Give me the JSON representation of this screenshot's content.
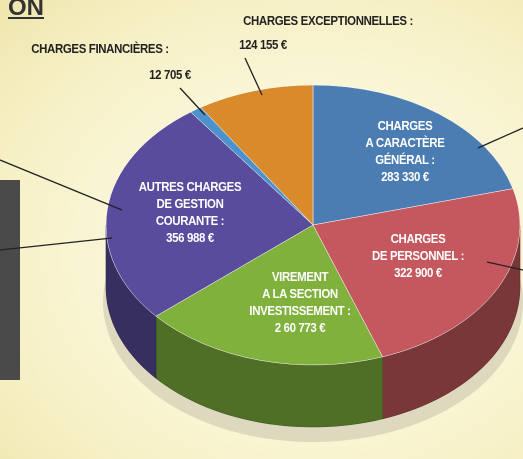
{
  "chart_data": {
    "type": "pie3d",
    "title": "ON",
    "categories": [
      "CHARGES\nA CARACTÈRE\nGÉNÉRAL :",
      "CHARGES\nDE PERSONNEL :",
      "VIREMENT\nA LA SECTION\nINVESTISSEMENT :",
      "AUTRES CHARGES\nDE GESTION\nCOURANTE :",
      "CHARGES FINANCIÈRES :",
      "CHARGES EXCEPTIONNELLES :"
    ],
    "values": [
      283330,
      322900,
      260773,
      356988,
      12705,
      124155
    ],
    "value_labels": [
      "283 330 €",
      "322 900 €",
      "2 60 773 €",
      "356 988 €",
      "12 705 €",
      "124 155 €"
    ],
    "colors": [
      "#4b7db3",
      "#c4585e",
      "#80b13d",
      "#5a4c9c",
      "#4c92cc",
      "#d98b2b"
    ]
  }
}
